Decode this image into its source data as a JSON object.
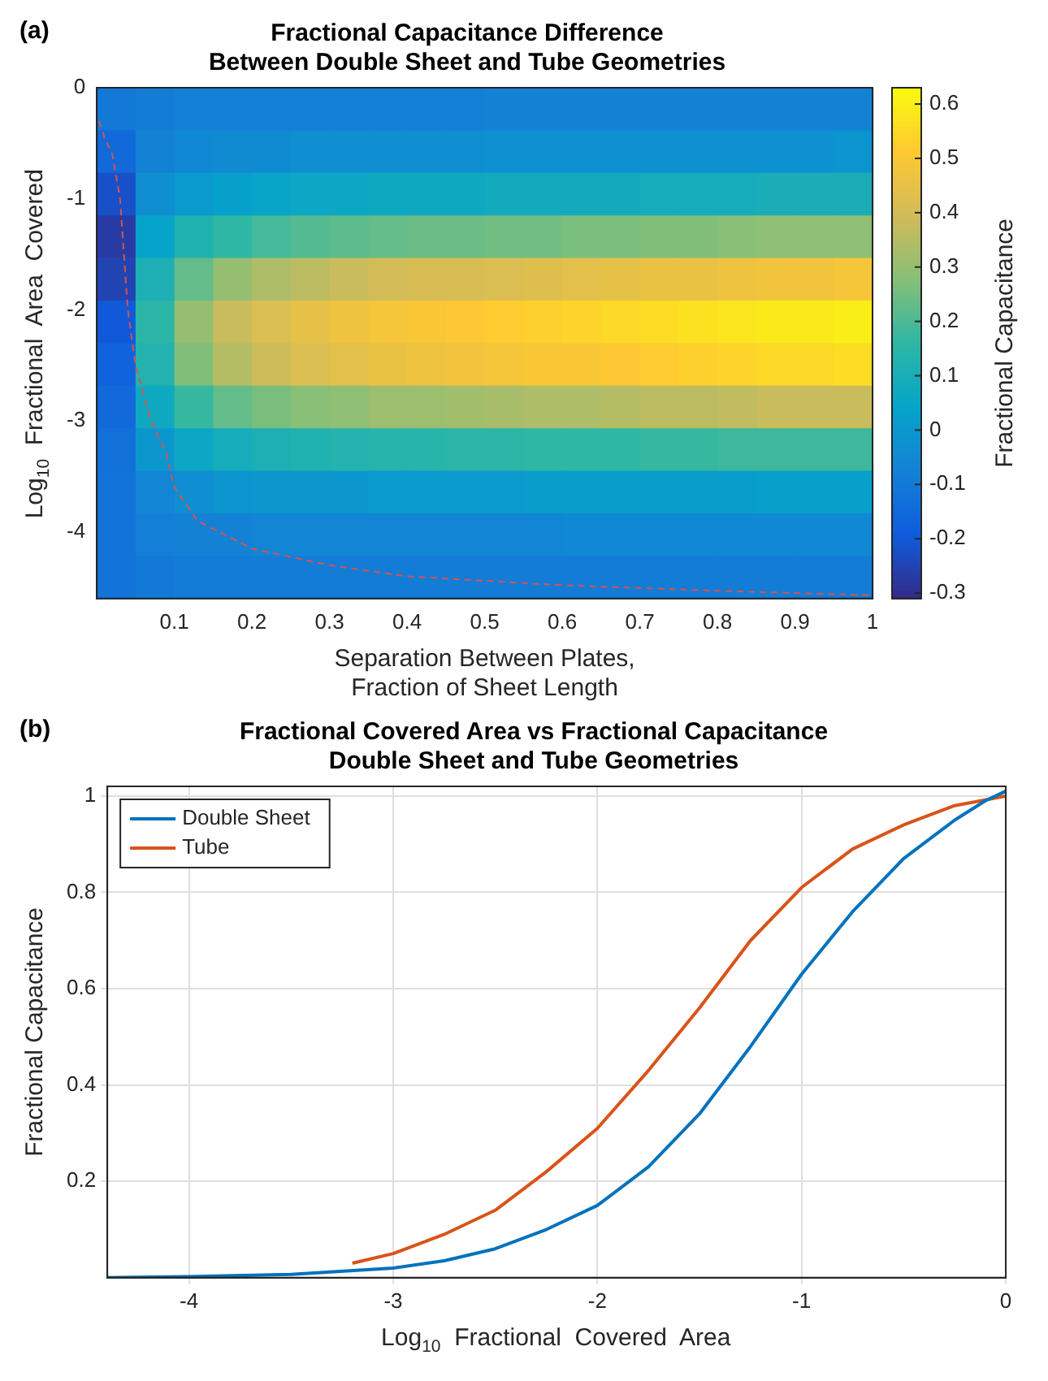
{
  "chart_data": [
    {
      "type": "heatmap",
      "title": "Fractional Capacitance Difference\nBetween Double Sheet and Tube Geometries",
      "xlabel": "Separation Between Plates,\nFraction of Sheet Length",
      "ylabel": "Log$_{10}$  Fractional  Area  Covered",
      "clabel": "Fractional Capacitance",
      "annotations": [
        "(a)"
      ],
      "xlim": [
        0,
        1
      ],
      "xticks": [
        0.1,
        0.2,
        0.3,
        0.4,
        0.5,
        0.6,
        0.7,
        0.8,
        0.9,
        1
      ],
      "ylim": [
        -4.6,
        0
      ],
      "yticks": [
        0,
        -1,
        -2,
        -3,
        -4
      ],
      "clim": [
        -0.31,
        0.63
      ],
      "cticks": [
        -0.3,
        -0.2,
        -0.1,
        0,
        0.1,
        0.2,
        0.3,
        0.4,
        0.5,
        0.6
      ],
      "cells": [
        [
          -0.1,
          -0.09,
          -0.08,
          -0.08,
          -0.08,
          -0.08,
          -0.08,
          -0.08,
          -0.08,
          -0.08,
          -0.07,
          -0.07,
          -0.07,
          -0.07,
          -0.07,
          -0.07,
          -0.07,
          -0.07,
          -0.07,
          -0.07
        ],
        [
          -0.15,
          -0.07,
          -0.05,
          -0.04,
          -0.04,
          -0.03,
          -0.03,
          -0.03,
          -0.03,
          -0.03,
          -0.02,
          -0.02,
          -0.02,
          -0.02,
          -0.02,
          -0.02,
          -0.02,
          -0.02,
          -0.02,
          -0.01
        ],
        [
          -0.22,
          -0.03,
          0.01,
          0.03,
          0.05,
          0.06,
          0.06,
          0.07,
          0.07,
          0.07,
          0.08,
          0.08,
          0.08,
          0.08,
          0.09,
          0.09,
          0.09,
          0.1,
          0.1,
          0.1
        ],
        [
          -0.27,
          0.04,
          0.12,
          0.16,
          0.19,
          0.21,
          0.22,
          0.23,
          0.24,
          0.24,
          0.25,
          0.25,
          0.26,
          0.26,
          0.27,
          0.27,
          0.28,
          0.29,
          0.29,
          0.29
        ],
        [
          -0.25,
          0.11,
          0.23,
          0.3,
          0.34,
          0.36,
          0.38,
          0.4,
          0.41,
          0.41,
          0.42,
          0.43,
          0.44,
          0.45,
          0.46,
          0.46,
          0.47,
          0.48,
          0.48,
          0.49
        ],
        [
          -0.2,
          0.15,
          0.3,
          0.38,
          0.42,
          0.45,
          0.47,
          0.49,
          0.5,
          0.51,
          0.52,
          0.53,
          0.54,
          0.55,
          0.56,
          0.57,
          0.58,
          0.59,
          0.59,
          0.6
        ],
        [
          -0.17,
          0.13,
          0.27,
          0.35,
          0.39,
          0.42,
          0.44,
          0.46,
          0.47,
          0.48,
          0.49,
          0.5,
          0.5,
          0.51,
          0.52,
          0.53,
          0.54,
          0.55,
          0.55,
          0.56
        ],
        [
          -0.15,
          0.07,
          0.17,
          0.23,
          0.26,
          0.28,
          0.29,
          0.31,
          0.31,
          0.32,
          0.33,
          0.34,
          0.34,
          0.35,
          0.36,
          0.36,
          0.37,
          0.38,
          0.38,
          0.38
        ],
        [
          -0.13,
          0.0,
          0.06,
          0.09,
          0.11,
          0.12,
          0.13,
          0.14,
          0.14,
          0.15,
          0.15,
          0.16,
          0.16,
          0.16,
          0.17,
          0.17,
          0.18,
          0.18,
          0.18,
          0.18
        ],
        [
          -0.12,
          -0.06,
          -0.03,
          -0.01,
          0.0,
          0.0,
          0.0,
          0.01,
          0.01,
          0.01,
          0.01,
          0.02,
          0.02,
          0.02,
          0.02,
          0.02,
          0.02,
          0.03,
          0.03,
          0.03
        ],
        [
          -0.12,
          -0.08,
          -0.07,
          -0.07,
          -0.06,
          -0.06,
          -0.06,
          -0.06,
          -0.06,
          -0.06,
          -0.06,
          -0.06,
          -0.05,
          -0.05,
          -0.05,
          -0.05,
          -0.05,
          -0.05,
          -0.05,
          -0.05
        ],
        [
          -0.12,
          -0.1,
          -0.09,
          -0.09,
          -0.09,
          -0.09,
          -0.09,
          -0.09,
          -0.09,
          -0.09,
          -0.09,
          -0.09,
          -0.09,
          -0.09,
          -0.09,
          -0.09,
          -0.09,
          -0.09,
          -0.09,
          -0.09
        ]
      ],
      "series": [
        {
          "type": "line",
          "color": "#d95350",
          "line_style": "dashed",
          "x": [
            0.003,
            0.01,
            0.02,
            0.03,
            0.035,
            0.04,
            0.05,
            0.07,
            0.09,
            0.1,
            0.13,
            0.2,
            0.3,
            0.4,
            0.6,
            0.8,
            1.0
          ],
          "values": [
            -0.3,
            -0.45,
            -0.6,
            -1.0,
            -1.5,
            -2.0,
            -2.5,
            -3.0,
            -3.3,
            -3.6,
            -3.9,
            -4.15,
            -4.3,
            -4.4,
            -4.48,
            -4.53,
            -4.57
          ]
        }
      ]
    },
    {
      "type": "line",
      "title": "Fractional Covered Area vs Fractional Capacitance\nDouble Sheet and Tube Geometries",
      "xlabel": "Log$_{10}$  Fractional  Covered  Area",
      "ylabel": "Fractional Capacitance",
      "annotations": [
        "(b)"
      ],
      "xlim": [
        -4.4,
        0
      ],
      "xticks": [
        -4,
        -3,
        -2,
        -1,
        0
      ],
      "ylim": [
        0,
        1.02
      ],
      "yticks": [
        0.2,
        0.4,
        0.6,
        0.8,
        1
      ],
      "grid": true,
      "legend": "top left",
      "marker": "none",
      "line_style": "solid",
      "series": [
        {
          "name": "Double Sheet",
          "color": "#0072bd",
          "x": [
            -4.4,
            -4,
            -3.5,
            -3,
            -2.75,
            -2.5,
            -2.25,
            -2,
            -1.75,
            -1.5,
            -1.25,
            -1,
            -0.75,
            -0.5,
            -0.25,
            -0.1,
            0
          ],
          "values": [
            0.0,
            0.002,
            0.007,
            0.02,
            0.035,
            0.06,
            0.1,
            0.15,
            0.23,
            0.34,
            0.48,
            0.63,
            0.76,
            0.87,
            0.95,
            0.99,
            1.01
          ]
        },
        {
          "name": "Tube",
          "color": "#d95319",
          "x": [
            -3.2,
            -3,
            -2.75,
            -2.5,
            -2.25,
            -2,
            -1.75,
            -1.5,
            -1.25,
            -1,
            -0.75,
            -0.5,
            -0.25,
            0
          ],
          "values": [
            0.03,
            0.05,
            0.09,
            0.14,
            0.22,
            0.31,
            0.43,
            0.56,
            0.7,
            0.81,
            0.89,
            0.94,
            0.98,
            1.0
          ]
        }
      ]
    }
  ]
}
